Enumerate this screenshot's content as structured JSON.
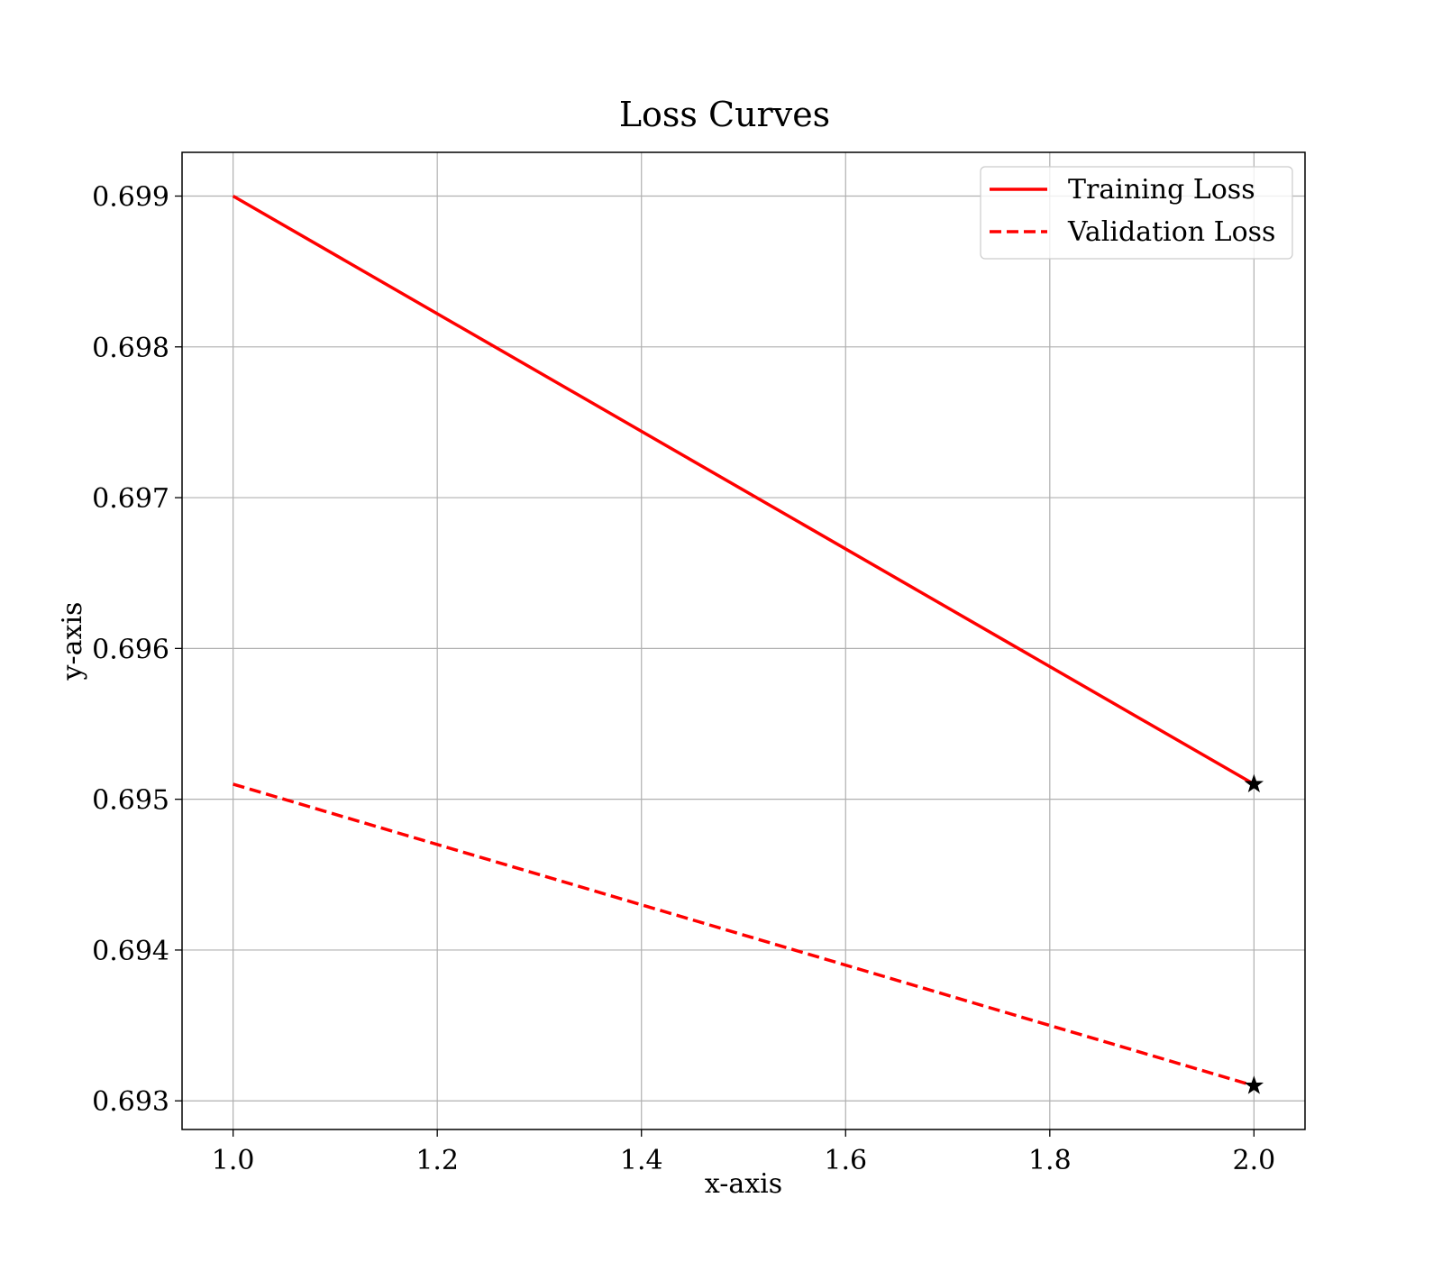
{
  "chart_data": {
    "type": "line",
    "title": "Loss Curves",
    "xlabel": "x-axis",
    "ylabel": "y-axis",
    "xlim": [
      0.95,
      2.05
    ],
    "ylim": [
      0.69281,
      0.69929
    ],
    "grid": true,
    "legend_position": "top-right",
    "x_ticks": [
      1.0,
      1.2,
      1.4,
      1.6,
      1.8,
      2.0
    ],
    "x_tick_labels": [
      "1.0",
      "1.2",
      "1.4",
      "1.6",
      "1.8",
      "2.0"
    ],
    "y_ticks": [
      0.693,
      0.694,
      0.695,
      0.696,
      0.697,
      0.698,
      0.699
    ],
    "y_tick_labels": [
      "0.693",
      "0.694",
      "0.695",
      "0.696",
      "0.697",
      "0.698",
      "0.699"
    ],
    "series": [
      {
        "name": "Training Loss",
        "x": [
          1.0,
          2.0
        ],
        "y": [
          0.699,
          0.6951
        ],
        "color": "#ff0000",
        "line_style": "solid",
        "end_marker": "star"
      },
      {
        "name": "Validation Loss",
        "x": [
          1.0,
          2.0
        ],
        "y": [
          0.6951,
          0.6931
        ],
        "color": "#ff0000",
        "line_style": "dashed",
        "end_marker": "star"
      }
    ],
    "colors": {
      "grid": "#b0b0b0",
      "axes": "#000000",
      "marker": "#000000"
    }
  }
}
